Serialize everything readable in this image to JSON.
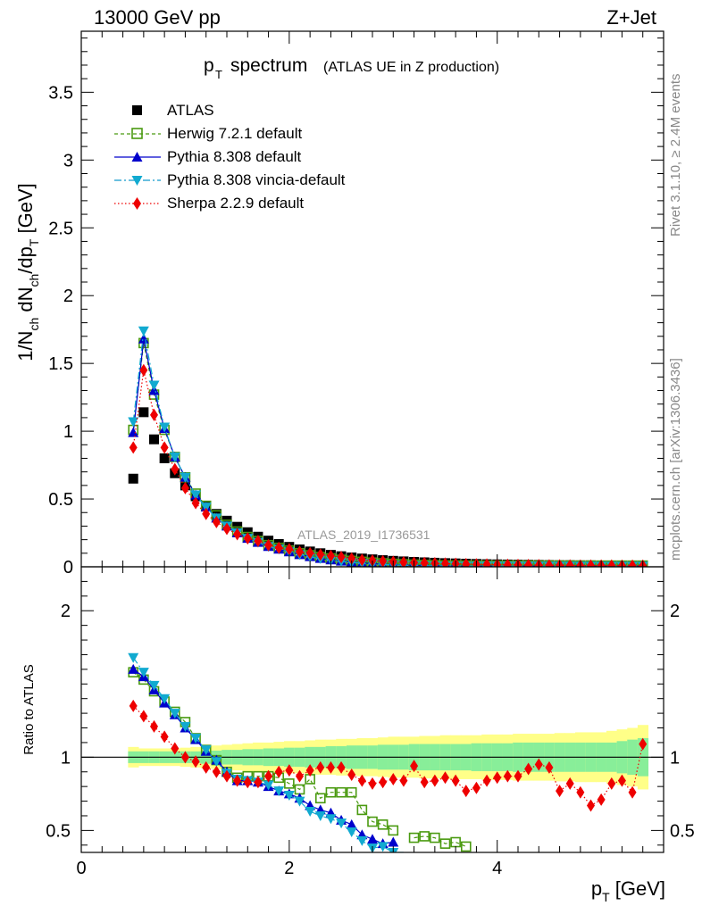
{
  "header": {
    "energy_label": "13000 GeV pp",
    "process_label": "Z+Jet"
  },
  "side_labels": {
    "rivet": "Rivet 3.1.10, ≥ 2.4M events",
    "mcplots": "mcplots.cern.ch [arXiv:1306.3436]"
  },
  "chart_data": [
    {
      "type": "scatter",
      "title_main": "spectrum",
      "title_sub": "(ATLAS UE in Z production)",
      "analysis_id": "ATLAS_2019_I1736531",
      "ylabel": "1/N_ch dN_ch/dp_T [GeV]",
      "xlim": [
        0,
        5.6
      ],
      "ylim": [
        0,
        3.95
      ],
      "yticks": [
        "0",
        "0.5",
        "1",
        "1.5",
        "2",
        "2.5",
        "3",
        "3.5"
      ],
      "legend": [
        "ATLAS",
        "Herwig 7.2.1 default",
        "Pythia 8.308 default",
        "Pythia 8.308 vincia-default",
        "Sherpa 2.2.9 default"
      ],
      "x": [
        0.5,
        0.6,
        0.7,
        0.8,
        0.9,
        1.0,
        1.1,
        1.2,
        1.3,
        1.4,
        1.5,
        1.6,
        1.7,
        1.8,
        1.9,
        2.0,
        2.1,
        2.2,
        2.3,
        2.4,
        2.5,
        2.6,
        2.7,
        2.8,
        2.9,
        3.0,
        3.1,
        3.2,
        3.3,
        3.4,
        3.5,
        3.6,
        3.7,
        3.8,
        3.9,
        4.0,
        4.1,
        4.2,
        4.3,
        4.4,
        4.5,
        4.6,
        4.7,
        4.8,
        4.9,
        5.0,
        5.1,
        5.2,
        5.3,
        5.4
      ],
      "series": [
        {
          "name": "ATLAS",
          "values": [
            0.65,
            1.14,
            0.94,
            0.8,
            0.69,
            0.6,
            0.52,
            0.45,
            0.39,
            0.34,
            0.295,
            0.255,
            0.222,
            0.193,
            0.168,
            0.147,
            0.128,
            0.113,
            0.1,
            0.088,
            0.078,
            0.069,
            0.061,
            0.055,
            0.049,
            0.044,
            0.04,
            0.036,
            0.033,
            0.03,
            0.027,
            0.025,
            0.023,
            0.021,
            0.019,
            0.018,
            0.017,
            0.016,
            0.015,
            0.014,
            0.013,
            0.012,
            0.012,
            0.011,
            0.011,
            0.01,
            0.01,
            0.009,
            0.009,
            0.009
          ]
        },
        {
          "name": "Herwig 7.2.1 default",
          "values": [
            1.01,
            1.65,
            1.27,
            1.01,
            0.81,
            0.66,
            0.54,
            0.45,
            0.38,
            0.31,
            0.26,
            0.22,
            0.19,
            0.16,
            0.14,
            0.12,
            0.1,
            0.085,
            0.072,
            0.062,
            0.052,
            0.044,
            0.037,
            0.031,
            0.026,
            0.022,
            0.019,
            0.016,
            0.014,
            0.012,
            0.011,
            0.01,
            0.009,
            0.009,
            0.009,
            0.009,
            0.009,
            0.009,
            0.009,
            0.009,
            0.009,
            0.009,
            0.009,
            0.009,
            0.009,
            0.009,
            0.009,
            0.009,
            0.009,
            0.009
          ]
        },
        {
          "name": "Pythia 8.308 default",
          "values": [
            0.99,
            1.68,
            1.3,
            1.02,
            0.81,
            0.66,
            0.53,
            0.44,
            0.36,
            0.3,
            0.25,
            0.21,
            0.18,
            0.15,
            0.13,
            0.11,
            0.09,
            0.075,
            0.062,
            0.051,
            0.042,
            0.035,
            0.028,
            0.023,
            0.019,
            0.016,
            0.013,
            0.011,
            0.009,
            0.008,
            0.007,
            0.006,
            0.005,
            0.005,
            0.005,
            0.005,
            0.005,
            0.005,
            0.005,
            0.005,
            0.005,
            0.005,
            0.005,
            0.005,
            0.005,
            0.005,
            0.005,
            0.005,
            0.005,
            0.005
          ]
        },
        {
          "name": "Pythia 8.308 vincia-default",
          "values": [
            1.07,
            1.74,
            1.34,
            1.03,
            0.81,
            0.66,
            0.53,
            0.44,
            0.36,
            0.3,
            0.25,
            0.21,
            0.18,
            0.15,
            0.13,
            0.11,
            0.09,
            0.074,
            0.06,
            0.049,
            0.04,
            0.032,
            0.026,
            0.021,
            0.017,
            0.014,
            0.011,
            0.009,
            0.008,
            0.007,
            0.006,
            0.005,
            0.005,
            0.005,
            0.005,
            0.005,
            0.005,
            0.005,
            0.005,
            0.005,
            0.005,
            0.005,
            0.005,
            0.005,
            0.005,
            0.005,
            0.005,
            0.005,
            0.005,
            0.005
          ]
        },
        {
          "name": "Sherpa 2.2.9 default",
          "values": [
            0.88,
            1.45,
            1.12,
            0.88,
            0.72,
            0.58,
            0.47,
            0.39,
            0.33,
            0.28,
            0.24,
            0.21,
            0.19,
            0.16,
            0.14,
            0.13,
            0.11,
            0.1,
            0.09,
            0.08,
            0.072,
            0.061,
            0.051,
            0.046,
            0.041,
            0.037,
            0.033,
            0.03,
            0.028,
            0.026,
            0.024,
            0.022,
            0.02,
            0.018,
            0.017,
            0.016,
            0.015,
            0.014,
            0.013,
            0.012,
            0.011,
            0.011,
            0.01,
            0.009,
            0.009,
            0.009,
            0.009,
            0.008,
            0.008,
            0.008
          ]
        }
      ]
    },
    {
      "type": "scatter",
      "ylabel": "Ratio to ATLAS",
      "xlabel": "p_T [GeV]",
      "xlim": [
        0,
        5.6
      ],
      "ylim": [
        0.35,
        2.3
      ],
      "yticks": [
        "0.5",
        "1",
        "2"
      ],
      "xticks": [
        "0",
        "2",
        "4"
      ],
      "band_inner_halfwidth": [
        0.04,
        0.04,
        0.04,
        0.04,
        0.04,
        0.04,
        0.04,
        0.045,
        0.045,
        0.05,
        0.05,
        0.055,
        0.055,
        0.06,
        0.06,
        0.065,
        0.065,
        0.07,
        0.07,
        0.075,
        0.075,
        0.08,
        0.08,
        0.08,
        0.085,
        0.085,
        0.085,
        0.09,
        0.09,
        0.09,
        0.09,
        0.09,
        0.09,
        0.095,
        0.095,
        0.095,
        0.095,
        0.1,
        0.1,
        0.1,
        0.1,
        0.1,
        0.1,
        0.1,
        0.1,
        0.1,
        0.1,
        0.11,
        0.12,
        0.13
      ],
      "band_outer_halfwidth": [
        0.07,
        0.06,
        0.06,
        0.06,
        0.06,
        0.065,
        0.07,
        0.075,
        0.08,
        0.085,
        0.09,
        0.095,
        0.1,
        0.1,
        0.105,
        0.11,
        0.11,
        0.115,
        0.12,
        0.12,
        0.125,
        0.125,
        0.13,
        0.13,
        0.135,
        0.14,
        0.14,
        0.14,
        0.145,
        0.145,
        0.15,
        0.15,
        0.15,
        0.15,
        0.155,
        0.155,
        0.155,
        0.16,
        0.16,
        0.16,
        0.16,
        0.165,
        0.165,
        0.17,
        0.17,
        0.17,
        0.18,
        0.19,
        0.2,
        0.22
      ],
      "series": [
        {
          "name": "Herwig 7.2.1 default",
          "values": [
            1.58,
            1.53,
            1.45,
            1.38,
            1.31,
            1.24,
            1.13,
            1.05,
            0.98,
            0.9,
            0.86,
            0.87,
            0.87,
            0.87,
            0.86,
            0.82,
            0.78,
            0.85,
            0.72,
            0.76,
            0.76,
            0.76,
            0.64,
            0.56,
            0.54,
            0.5,
            null,
            0.45,
            0.46,
            0.45,
            0.41,
            0.42,
            0.39
          ]
        },
        {
          "name": "Pythia 8.308 default",
          "values": [
            1.6,
            1.55,
            1.46,
            1.37,
            1.29,
            1.2,
            1.12,
            1.04,
            0.98,
            0.9,
            0.84,
            0.84,
            0.83,
            0.8,
            0.77,
            0.75,
            0.72,
            0.67,
            0.64,
            0.62,
            0.57,
            0.54,
            0.47,
            0.44,
            0.41,
            0.42,
            null,
            0.34
          ]
        },
        {
          "name": "Pythia 8.308 vincia-default",
          "values": [
            1.68,
            1.58,
            1.49,
            1.4,
            1.3,
            1.21,
            1.13,
            1.05,
            0.97,
            0.89,
            0.85,
            0.84,
            0.83,
            0.81,
            0.77,
            0.74,
            0.7,
            0.63,
            0.6,
            0.58,
            0.55,
            0.49,
            0.43,
            0.38,
            0.39,
            0.35,
            0.34
          ]
        },
        {
          "name": "Sherpa 2.2.9 default",
          "values": [
            1.35,
            1.28,
            1.21,
            1.14,
            1.06,
            1.0,
            0.97,
            0.93,
            0.9,
            0.87,
            0.84,
            0.83,
            0.83,
            0.87,
            0.9,
            0.91,
            0.87,
            0.91,
            0.93,
            0.93,
            0.93,
            0.88,
            0.84,
            0.82,
            0.83,
            0.85,
            0.84,
            0.94,
            0.83,
            0.84,
            0.86,
            0.84,
            0.77,
            0.79,
            0.84,
            0.86,
            0.87,
            0.87,
            0.92,
            0.95,
            0.93,
            0.77,
            0.82,
            0.76,
            0.67,
            0.71,
            0.82,
            0.84,
            0.76,
            1.09
          ]
        }
      ]
    }
  ]
}
